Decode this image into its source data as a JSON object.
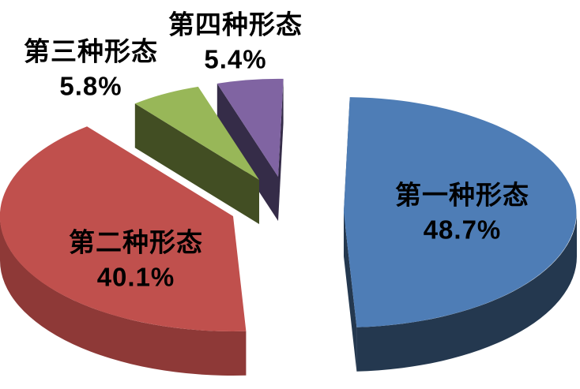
{
  "chart_data": {
    "type": "pie",
    "style": "3d-exploded",
    "title": "",
    "legend": "none",
    "background": "#ffffff",
    "label_text_color": "#000000",
    "label_bold": true,
    "unit": "%",
    "slices": [
      {
        "label": "第一种形态",
        "value": 48.7,
        "pct_label": "48.7%",
        "color": "#4E7DB6",
        "side_color": "#24384F"
      },
      {
        "label": "第二种形态",
        "value": 40.1,
        "pct_label": "40.1%",
        "color": "#C0504D",
        "side_color": "#8E3937"
      },
      {
        "label": "第三种形态",
        "value": 5.8,
        "pct_label": "5.8%",
        "color": "#98B758",
        "side_color": "#424E23"
      },
      {
        "label": "第四种形态",
        "value": 5.4,
        "pct_label": "5.4%",
        "color": "#8064A2",
        "side_color": "#352C48"
      }
    ]
  }
}
